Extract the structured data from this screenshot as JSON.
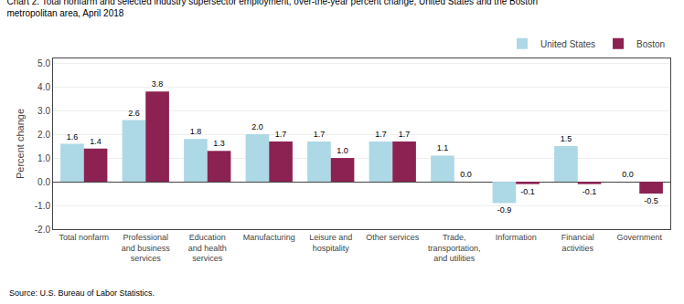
{
  "chart_data": {
    "type": "bar",
    "title": "Chart 2. Total nonfarm and selected industry supersector employment, over-the-year percent change, United States and the Boston\nmetropolitan area, April 2018",
    "ylabel": "Percent change",
    "annotations": [
      "Source: U.S. Bureau of Labor Statistics."
    ],
    "categories": [
      "Total nonfarm",
      "Professional\nand business\nservices",
      "Education\nand health\nservices",
      "Manufacturing",
      "Leisure and\nhospitality",
      "Other services",
      "Trade,\ntransportation,\nand utilities",
      "Information",
      "Financial\nactivities",
      "Government"
    ],
    "series": [
      {
        "name": "United States",
        "color": "#add8e6",
        "values": [
          1.6,
          2.6,
          1.8,
          2.0,
          1.7,
          1.7,
          1.1,
          -0.9,
          1.5,
          0.0
        ],
        "value_labels": [
          "1.6",
          "2.6",
          "1.8",
          "2.0",
          "1.7",
          "1.7",
          "1.1",
          "-0.9",
          "1.5",
          "0.0"
        ]
      },
      {
        "name": "Boston",
        "color": "#8b2252",
        "values": [
          1.4,
          3.8,
          1.3,
          1.7,
          1.0,
          1.7,
          0.0,
          -0.1,
          -0.1,
          -0.5
        ],
        "value_labels": [
          "1.4",
          "3.8",
          "1.3",
          "1.7",
          "1.0",
          "1.7",
          "0.0",
          "-0.1",
          "-0.1",
          "-0.5"
        ]
      }
    ],
    "ylim": [
      -2.0,
      5.2
    ],
    "yticks": [
      {
        "value": -2.0,
        "label": "-2.0"
      },
      {
        "value": -1.0,
        "label": "-1.0"
      },
      {
        "value": 0.0,
        "label": "0.0"
      },
      {
        "value": 1.0,
        "label": "1.0"
      },
      {
        "value": 2.0,
        "label": "2.0"
      },
      {
        "value": 3.0,
        "label": "3.0"
      },
      {
        "value": 4.0,
        "label": "4.0"
      },
      {
        "value": 5.0,
        "label": "5.0"
      }
    ],
    "grid": true,
    "legend": "upper right",
    "data_labels": true
  }
}
